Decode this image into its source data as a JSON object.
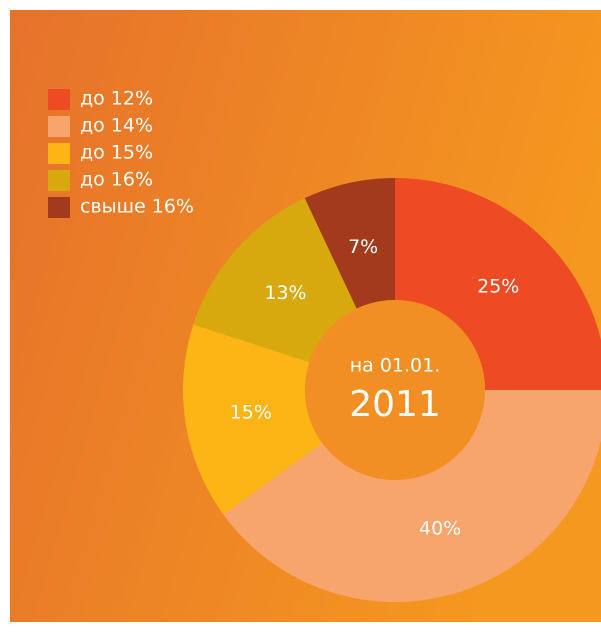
{
  "chart_data": {
    "type": "donut",
    "categories": [
      "до 12%",
      "до 14%",
      "до 15%",
      "до 16%",
      "свыше 16%"
    ],
    "values": [
      25,
      40,
      15,
      13,
      7
    ],
    "value_labels": [
      "25%",
      "40%",
      "15%",
      "13%",
      "7%"
    ],
    "colors": [
      "#ee4a24",
      "#f8a56d",
      "#fdb515",
      "#d8a90f",
      "#a33a1b"
    ],
    "center_text": [
      "на 01.01.",
      "2011"
    ],
    "legend": "upper left"
  }
}
